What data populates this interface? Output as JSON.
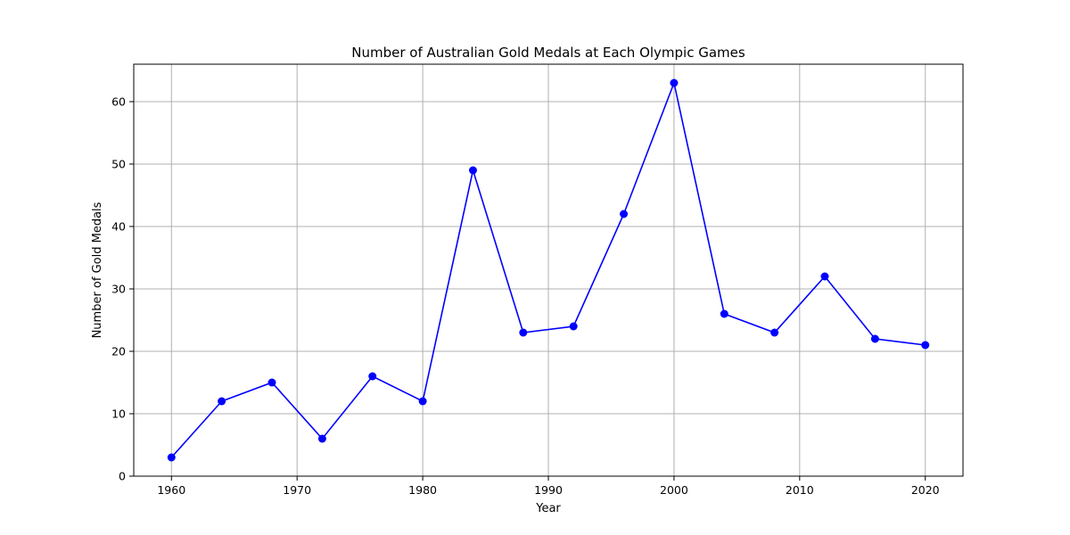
{
  "chart_data": {
    "type": "line",
    "title": "Number of Australian Gold Medals at Each Olympic Games",
    "xlabel": "Year",
    "ylabel": "Number of Gold Medals",
    "x": [
      1960,
      1964,
      1968,
      1972,
      1976,
      1980,
      1984,
      1988,
      1992,
      1996,
      2000,
      2004,
      2008,
      2012,
      2016,
      2020
    ],
    "series": [
      {
        "values": [
          3,
          12,
          15,
          6,
          16,
          12,
          49,
          23,
          24,
          42,
          63,
          26,
          23,
          32,
          22,
          21
        ],
        "color": "#0000ff",
        "marker": "circle"
      }
    ],
    "xlim": [
      1957.0,
      2023.0
    ],
    "ylim": [
      0,
      66
    ],
    "xticks": [
      1960,
      1970,
      1980,
      1990,
      2000,
      2010,
      2020
    ],
    "yticks": [
      0,
      10,
      20,
      30,
      40,
      50,
      60
    ],
    "grid": true,
    "legend": "none"
  }
}
